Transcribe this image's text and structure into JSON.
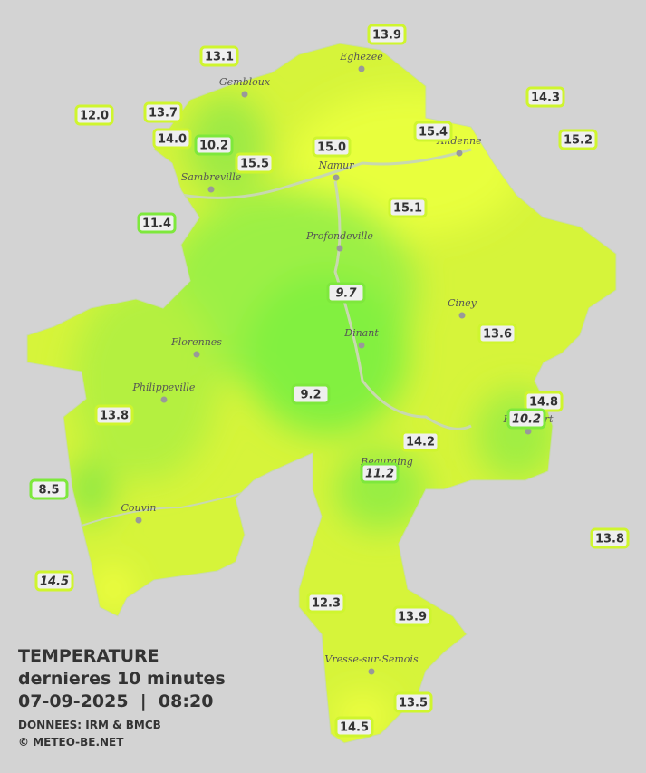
{
  "header": {
    "title": "TEMPERATURE",
    "subtitle": "dernieres 10 minutes",
    "datetime": "07-09-2025  |  08:20",
    "source": "DONNEES: IRM & BMCB",
    "credit": "© METEO-BE.NET"
  },
  "cities": [
    "Eghezee",
    "Gembloux",
    "Andenne",
    "Namur",
    "Sambreville",
    "Profondeville",
    "Ciney",
    "Dinant",
    "Florennes",
    "Philippeville",
    "Rochefort",
    "Beauraing",
    "Couvin",
    "Vresse-sur-Semois"
  ],
  "stations": [
    "13.9",
    "13.1",
    "14.3",
    "12.0",
    "13.7",
    "14.0",
    "10.2",
    "15.4",
    "15.2",
    "15.0",
    "15.5",
    "15.1",
    "11.4",
    "9.7",
    "13.6",
    "9.2",
    "14.8",
    "10.2",
    "13.8",
    "14.2",
    "11.2",
    "8.5",
    "13.8",
    "14.5",
    "12.3",
    "13.9",
    "13.5",
    "14.5"
  ]
}
